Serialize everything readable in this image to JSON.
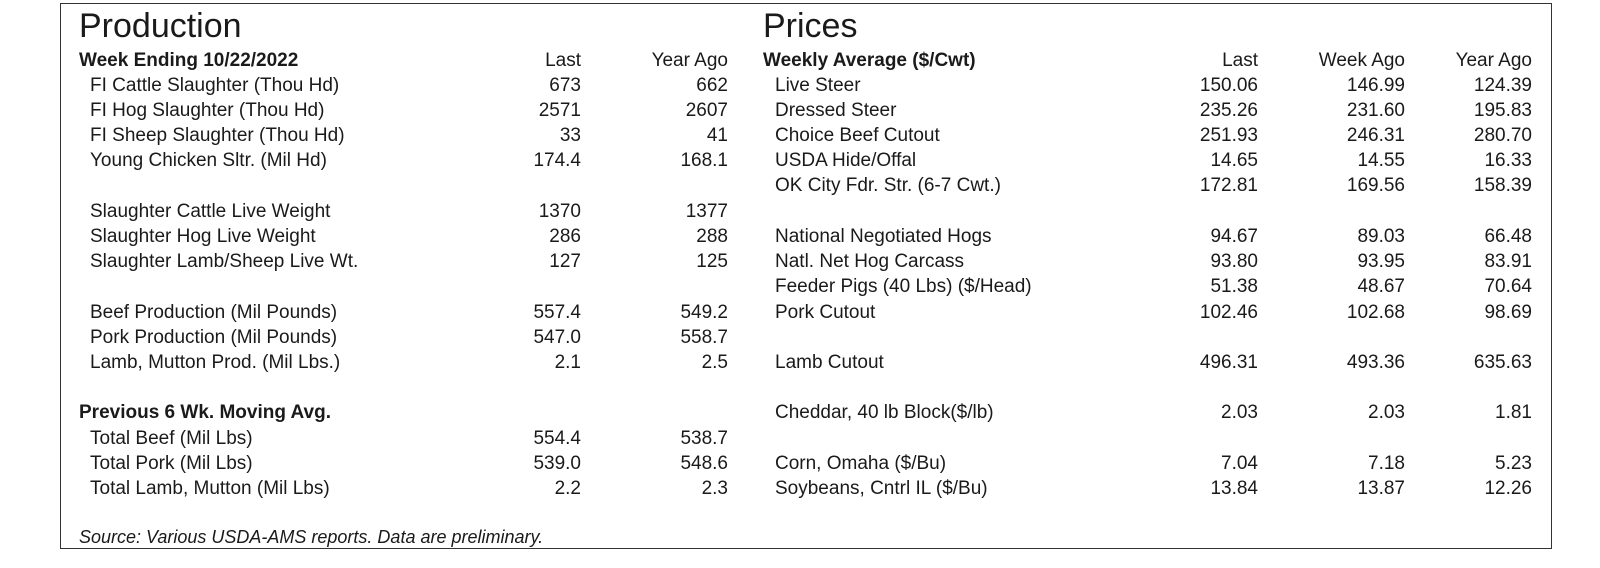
{
  "production": {
    "title": "Production",
    "week_heading": "Week Ending 10/22/2022",
    "columns": [
      "Last",
      "Year Ago"
    ],
    "rows": [
      {
        "label": "FI Cattle Slaughter (Thou Hd)",
        "last": "673",
        "year_ago": "662"
      },
      {
        "label": "FI Hog Slaughter (Thou Hd)",
        "last": "2571",
        "year_ago": "2607"
      },
      {
        "label": "FI Sheep Slaughter (Thou Hd)",
        "last": "33",
        "year_ago": "41"
      },
      {
        "label": "Young Chicken Sltr. (Mil Hd)",
        "last": "174.4",
        "year_ago": "168.1"
      },
      {
        "label": "Slaughter Cattle Live Weight",
        "last": "1370",
        "year_ago": "1377"
      },
      {
        "label": "Slaughter Hog Live Weight",
        "last": "286",
        "year_ago": "288"
      },
      {
        "label": "Slaughter Lamb/Sheep Live Wt.",
        "last": "127",
        "year_ago": "125"
      },
      {
        "label": "Beef Production (Mil Pounds)",
        "last": "557.4",
        "year_ago": "549.2"
      },
      {
        "label": "Pork Production (Mil Pounds)",
        "last": "547.0",
        "year_ago": "558.7"
      },
      {
        "label": "Lamb, Mutton Prod. (Mil Lbs.)",
        "last": "2.1",
        "year_ago": "2.5"
      }
    ],
    "moving_avg_heading": "Previous 6 Wk. Moving Avg.",
    "moving_avg_rows": [
      {
        "label": "Total Beef (Mil Lbs)",
        "last": "554.4",
        "year_ago": "538.7"
      },
      {
        "label": "Total Pork (Mil Lbs)",
        "last": "539.0",
        "year_ago": "548.6"
      },
      {
        "label": "Total Lamb, Mutton (Mil Lbs)",
        "last": "2.2",
        "year_ago": "2.3"
      }
    ]
  },
  "prices": {
    "title": "Prices",
    "weekly_heading": "Weekly Average ($/Cwt)",
    "columns": [
      "Last",
      "Week Ago",
      "Year Ago"
    ],
    "rows": [
      {
        "label": "Live Steer",
        "last": "150.06",
        "week_ago": "146.99",
        "year_ago": "124.39"
      },
      {
        "label": "Dressed Steer",
        "last": "235.26",
        "week_ago": "231.60",
        "year_ago": "195.83"
      },
      {
        "label": "Choice Beef Cutout",
        "last": "251.93",
        "week_ago": "246.31",
        "year_ago": "280.70"
      },
      {
        "label": "USDA Hide/Offal",
        "last": "14.65",
        "week_ago": "14.55",
        "year_ago": "16.33"
      },
      {
        "label": "OK City Fdr. Str. (6-7 Cwt.)",
        "last": "172.81",
        "week_ago": "169.56",
        "year_ago": "158.39"
      },
      {
        "label": "National Negotiated Hogs",
        "last": "94.67",
        "week_ago": "89.03",
        "year_ago": "66.48"
      },
      {
        "label": "Natl. Net Hog Carcass",
        "last": "93.80",
        "week_ago": "93.95",
        "year_ago": "83.91"
      },
      {
        "label": "Feeder Pigs (40 Lbs) ($/Head)",
        "last": "51.38",
        "week_ago": "48.67",
        "year_ago": "70.64"
      },
      {
        "label": "Pork Cutout",
        "last": "102.46",
        "week_ago": "102.68",
        "year_ago": "98.69"
      },
      {
        "label": "Lamb Cutout",
        "last": "496.31",
        "week_ago": "493.36",
        "year_ago": "635.63"
      },
      {
        "label": "Cheddar, 40 lb Block($/lb)",
        "last": "2.03",
        "week_ago": "2.03",
        "year_ago": "1.81"
      },
      {
        "label": "Corn, Omaha ($/Bu)",
        "last": "7.04",
        "week_ago": "7.18",
        "year_ago": "5.23"
      },
      {
        "label": "Soybeans, Cntrl IL ($/Bu)",
        "last": "13.84",
        "week_ago": "13.87",
        "year_ago": "12.26"
      }
    ]
  },
  "source_note": "Source:  Various USDA-AMS reports.  Data are preliminary."
}
